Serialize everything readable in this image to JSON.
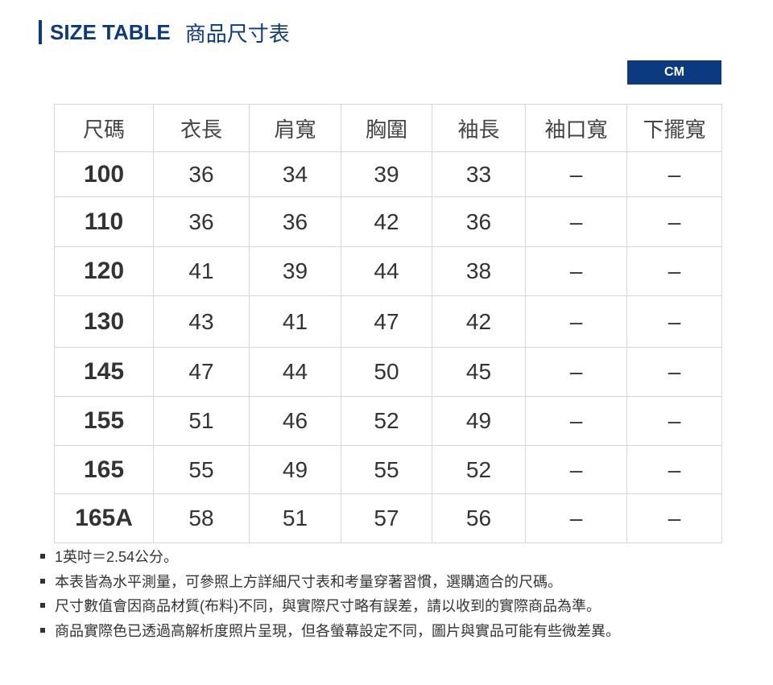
{
  "title": {
    "en": "SIZE TABLE",
    "cn": "商品尺寸表"
  },
  "unit": "CM",
  "colors": {
    "accent": "#0b3a80"
  },
  "table": {
    "headers": [
      "尺碼",
      "衣長",
      "肩寬",
      "胸圍",
      "袖長",
      "袖口寬",
      "下擺寬"
    ],
    "rows": [
      [
        "100",
        "36",
        "34",
        "39",
        "33",
        "–",
        "–"
      ],
      [
        "110",
        "36",
        "36",
        "42",
        "36",
        "–",
        "–"
      ],
      [
        "120",
        "41",
        "39",
        "44",
        "38",
        "–",
        "–"
      ],
      [
        "130",
        "43",
        "41",
        "47",
        "42",
        "–",
        "–"
      ],
      [
        "145",
        "47",
        "44",
        "50",
        "45",
        "–",
        "–"
      ],
      [
        "155",
        "51",
        "46",
        "52",
        "49",
        "–",
        "–"
      ],
      [
        "165",
        "55",
        "49",
        "55",
        "52",
        "–",
        "–"
      ],
      [
        "165A",
        "58",
        "51",
        "57",
        "56",
        "–",
        "–"
      ]
    ]
  },
  "notes": [
    "1英吋＝2.54公分。",
    "本表皆為水平測量，可參照上方詳細尺寸表和考量穿著習慣，選購適合的尺碼。",
    "尺寸數值會因商品材質(布料)不同，與實際尺寸略有誤差，請以收到的實際商品為準。",
    "商品實際色已透過高解析度照片呈現，但各螢幕設定不同，圖片與實品可能有些微差異。"
  ]
}
